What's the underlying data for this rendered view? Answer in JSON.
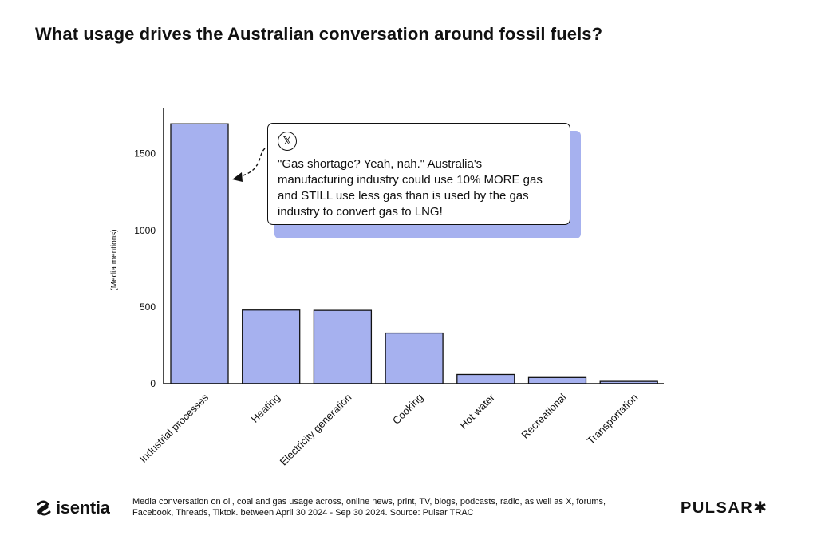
{
  "title": "What usage drives the Australian conversation around fossil fuels?",
  "chart_data": {
    "type": "bar",
    "categories": [
      "Industrial processes",
      "Heating",
      "Electricity generation",
      "Cooking",
      "Hot water",
      "Recreational",
      "Transportation"
    ],
    "values": [
      1695,
      480,
      478,
      330,
      60,
      40,
      15
    ],
    "ylabel": "(Media mentions)",
    "ylim": [
      0,
      1800
    ],
    "yticks": [
      0,
      500,
      1000,
      1500
    ],
    "grid": false,
    "bar_color": "#a6b1ef"
  },
  "callout": {
    "icon": "x-logo-icon",
    "glyph": "𝕏",
    "quote": "\"Gas shortage? Yeah, nah.\" Australia's manufacturing industry could use 10% MORE gas and STILL use less gas than is used by the gas industry to convert gas to LNG!"
  },
  "footer": {
    "logo_left": "isentia",
    "note": "Media conversation on oil, coal and gas usage across, online news, print, TV, blogs, podcasts, radio, as well as X, forums, Facebook, Threads, Tiktok. between April 30 2024 - Sep 30 2024. Source: Pulsar TRAC",
    "logo_right": "PULSAR",
    "logo_right_glyph": "✱"
  }
}
